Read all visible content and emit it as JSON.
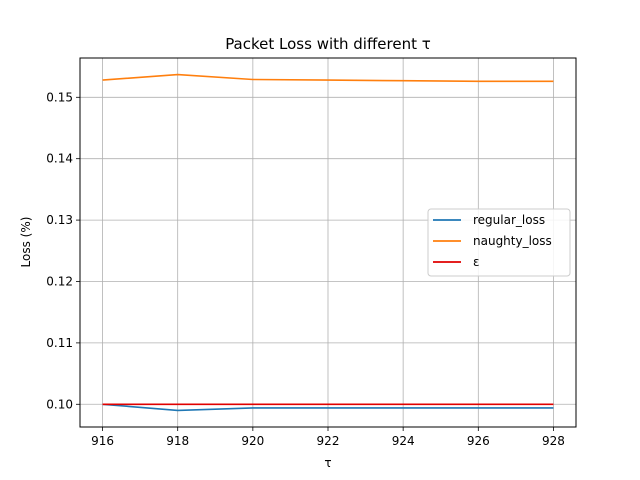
{
  "chart_data": {
    "type": "line",
    "title": "Packet Loss with different τ",
    "xlabel": "τ",
    "ylabel": "Loss (%)",
    "x": [
      916,
      918,
      920,
      922,
      924,
      926,
      928
    ],
    "xlim": [
      915.4,
      928.6
    ],
    "ylim": [
      0.0963,
      0.1564
    ],
    "xticks": [
      916,
      918,
      920,
      922,
      924,
      926,
      928
    ],
    "yticks": [
      0.1,
      0.11,
      0.12,
      0.13,
      0.14,
      0.15
    ],
    "ytick_labels": [
      "0.10",
      "0.11",
      "0.12",
      "0.13",
      "0.14",
      "0.15"
    ],
    "grid": true,
    "legend_position": "center-right",
    "series": [
      {
        "name": "regular_loss",
        "color": "#1f77b4",
        "values": [
          0.1,
          0.099,
          0.0994,
          0.0994,
          0.0994,
          0.0994,
          0.0994
        ]
      },
      {
        "name": "naughty_loss",
        "color": "#ff7f0e",
        "values": [
          0.1528,
          0.1537,
          0.1529,
          0.1528,
          0.1527,
          0.1526,
          0.1526
        ]
      },
      {
        "name": "ε",
        "color": "#e00000",
        "values": [
          0.1,
          0.1,
          0.1,
          0.1,
          0.1,
          0.1,
          0.1
        ]
      }
    ]
  }
}
